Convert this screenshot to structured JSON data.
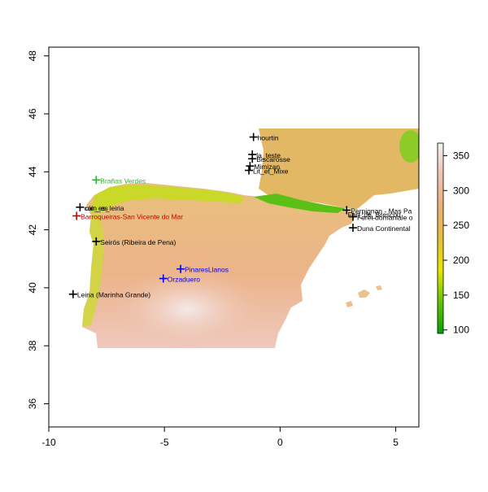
{
  "chart_data": {
    "type": "raster-map",
    "xlim": [
      -10.0,
      6.0
    ],
    "ylim": [
      35.2,
      48.3
    ],
    "x_ticks": [
      "-10",
      "-5",
      "0",
      "5"
    ],
    "y_ticks": [
      "36",
      "38",
      "40",
      "42",
      "44",
      "46",
      "48"
    ],
    "legend": {
      "ticks": [
        "100",
        "150",
        "200",
        "250",
        "300",
        "350"
      ],
      "range": [
        95,
        368
      ],
      "colors": [
        "#00a600",
        "#63c600",
        "#e6e600",
        "#e9bd3a",
        "#ecb176",
        "#efc2b3",
        "#f2f2f2"
      ]
    },
    "points": [
      {
        "label": "hourtin",
        "lon": -1.15,
        "lat": 45.2,
        "color": "#000000"
      },
      {
        "label": "la_teste",
        "lon": -1.2,
        "lat": 44.6,
        "color": "#000000"
      },
      {
        "label": "Biscarosse",
        "lon": -1.2,
        "lat": 44.45,
        "color": "#000000"
      },
      {
        "label": "Mimizan",
        "lon": -1.3,
        "lat": 44.2,
        "color": "#000000"
      },
      {
        "label": "Lit_et_Mixe",
        "lon": -1.35,
        "lat": 44.05,
        "color": "#000000"
      },
      {
        "label": "Brañas Verdes",
        "lon": -7.95,
        "lat": 43.72,
        "color": "#22bb22"
      },
      {
        "label": "coin_es",
        "lon": -8.65,
        "lat": 42.78,
        "color": "#000000"
      },
      {
        "label": "Barroqueiras-San Vicente do Mar",
        "lon": -8.8,
        "lat": 42.48,
        "color": "#cc0000"
      },
      {
        "label": "Seirós (Ribeira de Pena)",
        "lon": -7.95,
        "lat": 41.6,
        "color": "#000000"
      },
      {
        "label": "PinaresLlanos",
        "lon": -4.3,
        "lat": 40.65,
        "color": "#0000ee"
      },
      {
        "label": "Orzaduero",
        "lon": -5.05,
        "lat": 40.32,
        "color": "#0000ee"
      },
      {
        "label": "Leiria (Marinha Grande)",
        "lon": -8.95,
        "lat": 39.78,
        "color": "#000000"
      },
      {
        "label": "Perpignan - Mas Pa",
        "lon": 2.88,
        "lat": 42.68,
        "color": "#000000"
      },
      {
        "label": "Forêt domaniale o",
        "lon": 3.15,
        "lat": 42.45,
        "color": "#000000"
      },
      {
        "label": "Duna Continental",
        "lon": 3.15,
        "lat": 42.07,
        "color": "#000000"
      }
    ],
    "extra_labels": [
      {
        "label": "oin_es_leiria",
        "lon": -8.6,
        "lat": 42.78,
        "color": "#000000"
      },
      {
        "label": "Fort_de_Brescou",
        "lon": 2.75,
        "lat": 42.55,
        "color": "#000000"
      }
    ]
  }
}
